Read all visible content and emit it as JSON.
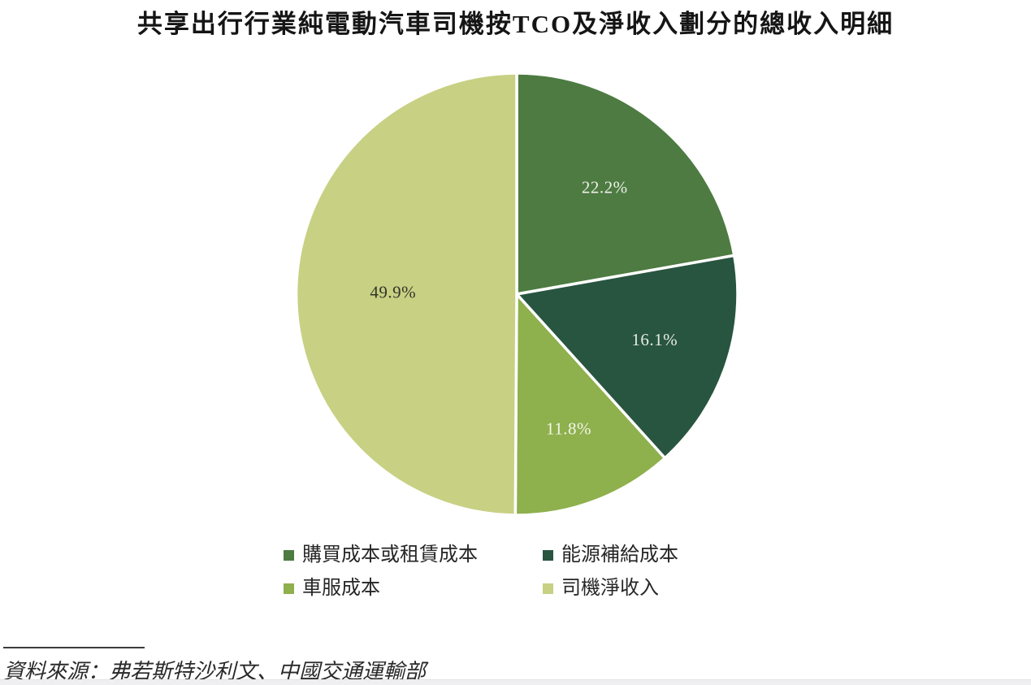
{
  "title": "共享出行行業純電動汽車司機按TCO及淨收入劃分的總收入明細",
  "source_text": "資料來源：弗若斯特沙利文、中國交通運輸部",
  "chart_data": {
    "type": "pie",
    "title": "共享出行行業純電動汽車司機按TCO及淨收入劃分的總收入明細",
    "unit": "percent",
    "start_angle_deg": 0,
    "direction": "clockwise",
    "legend_position": "bottom",
    "legend_columns": 2,
    "slices": [
      {
        "label": "購買成本或租賃成本",
        "value": 22.2,
        "display": "22.2%",
        "color": "#4d7b42",
        "label_color": "#eef1e6"
      },
      {
        "label": "能源補給成本",
        "value": 16.1,
        "display": "16.1%",
        "color": "#285540",
        "label_color": "#e7ece3"
      },
      {
        "label": "車服成本",
        "value": 11.8,
        "display": "11.8%",
        "color": "#8eb04d",
        "label_color": "#f3f5e9"
      },
      {
        "label": "司機淨收入",
        "value": 49.9,
        "display": "49.9%",
        "color": "#c8d083",
        "label_color": "#33352b"
      }
    ]
  }
}
